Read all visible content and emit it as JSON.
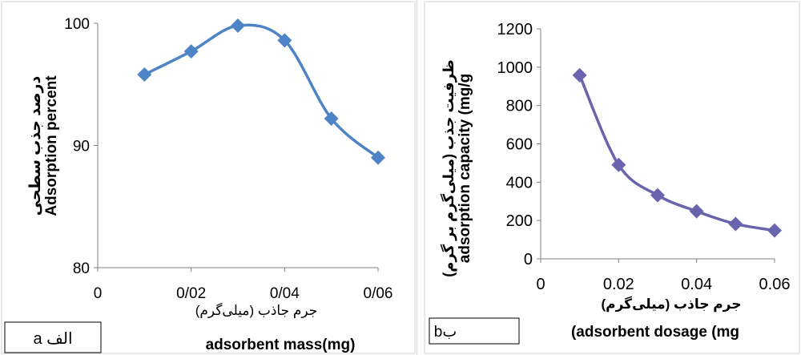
{
  "chart_data": [
    {
      "type": "line",
      "panel_label": "a الف",
      "xlabel": "جرم جاذب (میلی‌گرم)",
      "xlabel_en": "adsorbent mass(mg)",
      "ylabel": "درصد جذب سطحی",
      "ylabel_en": "Adsorption percent",
      "x": [
        0.01,
        0.02,
        0.03,
        0.04,
        0.05,
        0.06
      ],
      "y": [
        95.8,
        97.7,
        99.8,
        98.6,
        92.2,
        89.0
      ],
      "xlim": [
        0,
        0.06
      ],
      "ylim": [
        80,
        100
      ],
      "x_ticks": [
        "0",
        "0/02",
        "0/04",
        "0/06"
      ],
      "y_ticks": [
        "80",
        "90",
        "100"
      ],
      "grid": false,
      "color": "#4e84c6",
      "smooth": true
    },
    {
      "type": "line",
      "panel_label": "bب",
      "xlabel": "جرم جاذب (میلی‌گرم)",
      "xlabel_en": "(adsorbent dosage (mg",
      "ylabel": "ظرفیت جذب (میلی‌گرم بر گرم)",
      "ylabel_en": "adsorption capacity (mg/g",
      "x": [
        0.01,
        0.02,
        0.03,
        0.04,
        0.05,
        0.06
      ],
      "y": [
        958,
        490,
        332,
        248,
        182,
        148
      ],
      "xlim": [
        0,
        0.06
      ],
      "ylim": [
        0,
        1200
      ],
      "x_ticks": [
        "0",
        "0.02",
        "0.04",
        "0.06"
      ],
      "y_ticks": [
        "0",
        "200",
        "400",
        "600",
        "800",
        "1000",
        "1200"
      ],
      "grid": false,
      "color": "#6a63ad",
      "smooth": true
    }
  ]
}
